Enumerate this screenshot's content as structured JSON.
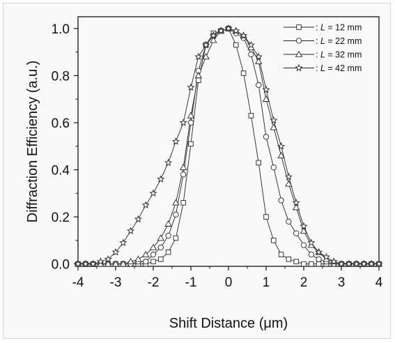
{
  "chart_data": {
    "type": "line",
    "xlabel": "Shift Distance (μm)",
    "ylabel": "Diffraction Efficiency (a.u.)",
    "xlim": [
      -4,
      4
    ],
    "ylim": [
      0.0,
      1.0
    ],
    "x_ticks": [
      "-4",
      "-3",
      "-2",
      "-1",
      "0",
      "1",
      "2",
      "3",
      "4"
    ],
    "y_ticks": [
      "0.0",
      "0.2",
      "0.4",
      "0.6",
      "0.8",
      "1.0"
    ],
    "grid": false,
    "legend_position": "top-right",
    "x": [
      -4.0,
      -3.8,
      -3.6,
      -3.4,
      -3.2,
      -3.0,
      -2.8,
      -2.6,
      -2.4,
      -2.2,
      -2.0,
      -1.8,
      -1.6,
      -1.4,
      -1.2,
      -1.0,
      -0.8,
      -0.6,
      -0.4,
      -0.2,
      0.0,
      0.2,
      0.4,
      0.6,
      0.8,
      1.0,
      1.2,
      1.4,
      1.6,
      1.8,
      2.0,
      2.2,
      2.4,
      2.6,
      2.8,
      3.0,
      3.2,
      3.4,
      3.6,
      3.8,
      4.0
    ],
    "series": [
      {
        "name": ": L = 12 mm",
        "name_prefix": ": ",
        "name_var": "L",
        "name_rest": " = 12 mm",
        "marker": "square",
        "values": [
          0.0,
          0.0,
          0.0,
          0.0,
          0.0,
          0.0,
          0.0,
          0.0,
          0.0,
          0.0,
          0.01,
          0.02,
          0.05,
          0.11,
          0.26,
          0.51,
          0.78,
          0.93,
          0.98,
          0.99,
          1.0,
          0.93,
          0.81,
          0.63,
          0.43,
          0.2,
          0.1,
          0.04,
          0.02,
          0.01,
          0.0,
          0.0,
          0.0,
          0.0,
          0.0,
          0.0,
          0.0,
          0.0,
          0.0,
          0.0,
          0.0
        ]
      },
      {
        "name": ": L = 22 mm",
        "name_prefix": ": ",
        "name_var": "L",
        "name_rest": " = 22 mm",
        "marker": "circle",
        "values": [
          0.0,
          0.0,
          0.0,
          0.0,
          0.0,
          0.0,
          0.0,
          0.0,
          0.01,
          0.01,
          0.04,
          0.07,
          0.12,
          0.21,
          0.38,
          0.6,
          0.82,
          0.93,
          0.97,
          0.99,
          1.0,
          0.98,
          0.96,
          0.89,
          0.76,
          0.54,
          0.41,
          0.27,
          0.18,
          0.13,
          0.08,
          0.04,
          0.02,
          0.01,
          0.0,
          0.0,
          0.0,
          0.0,
          0.0,
          0.0,
          0.0
        ]
      },
      {
        "name": ": L = 32 mm",
        "name_prefix": ": ",
        "name_var": "L",
        "name_rest": " = 32 mm",
        "marker": "triangle",
        "values": [
          0.0,
          0.0,
          0.0,
          0.0,
          0.0,
          0.0,
          0.0,
          0.01,
          0.02,
          0.04,
          0.07,
          0.11,
          0.17,
          0.26,
          0.41,
          0.63,
          0.8,
          0.88,
          0.95,
          0.99,
          1.0,
          0.99,
          0.97,
          0.92,
          0.86,
          0.7,
          0.58,
          0.46,
          0.34,
          0.24,
          0.14,
          0.08,
          0.05,
          0.02,
          0.01,
          0.0,
          0.0,
          0.0,
          0.0,
          0.0,
          0.0
        ]
      },
      {
        "name": ": L = 42 mm",
        "name_prefix": ": ",
        "name_var": "L",
        "name_rest": " = 42 mm",
        "marker": "star",
        "values": [
          0.0,
          0.0,
          0.0,
          0.01,
          0.02,
          0.05,
          0.09,
          0.14,
          0.19,
          0.25,
          0.3,
          0.36,
          0.43,
          0.52,
          0.6,
          0.75,
          0.88,
          0.93,
          0.97,
          0.99,
          1.0,
          0.99,
          0.97,
          0.93,
          0.88,
          0.74,
          0.61,
          0.5,
          0.37,
          0.26,
          0.16,
          0.09,
          0.05,
          0.03,
          0.01,
          0.0,
          0.0,
          0.0,
          0.0,
          0.0,
          0.0
        ]
      }
    ]
  }
}
